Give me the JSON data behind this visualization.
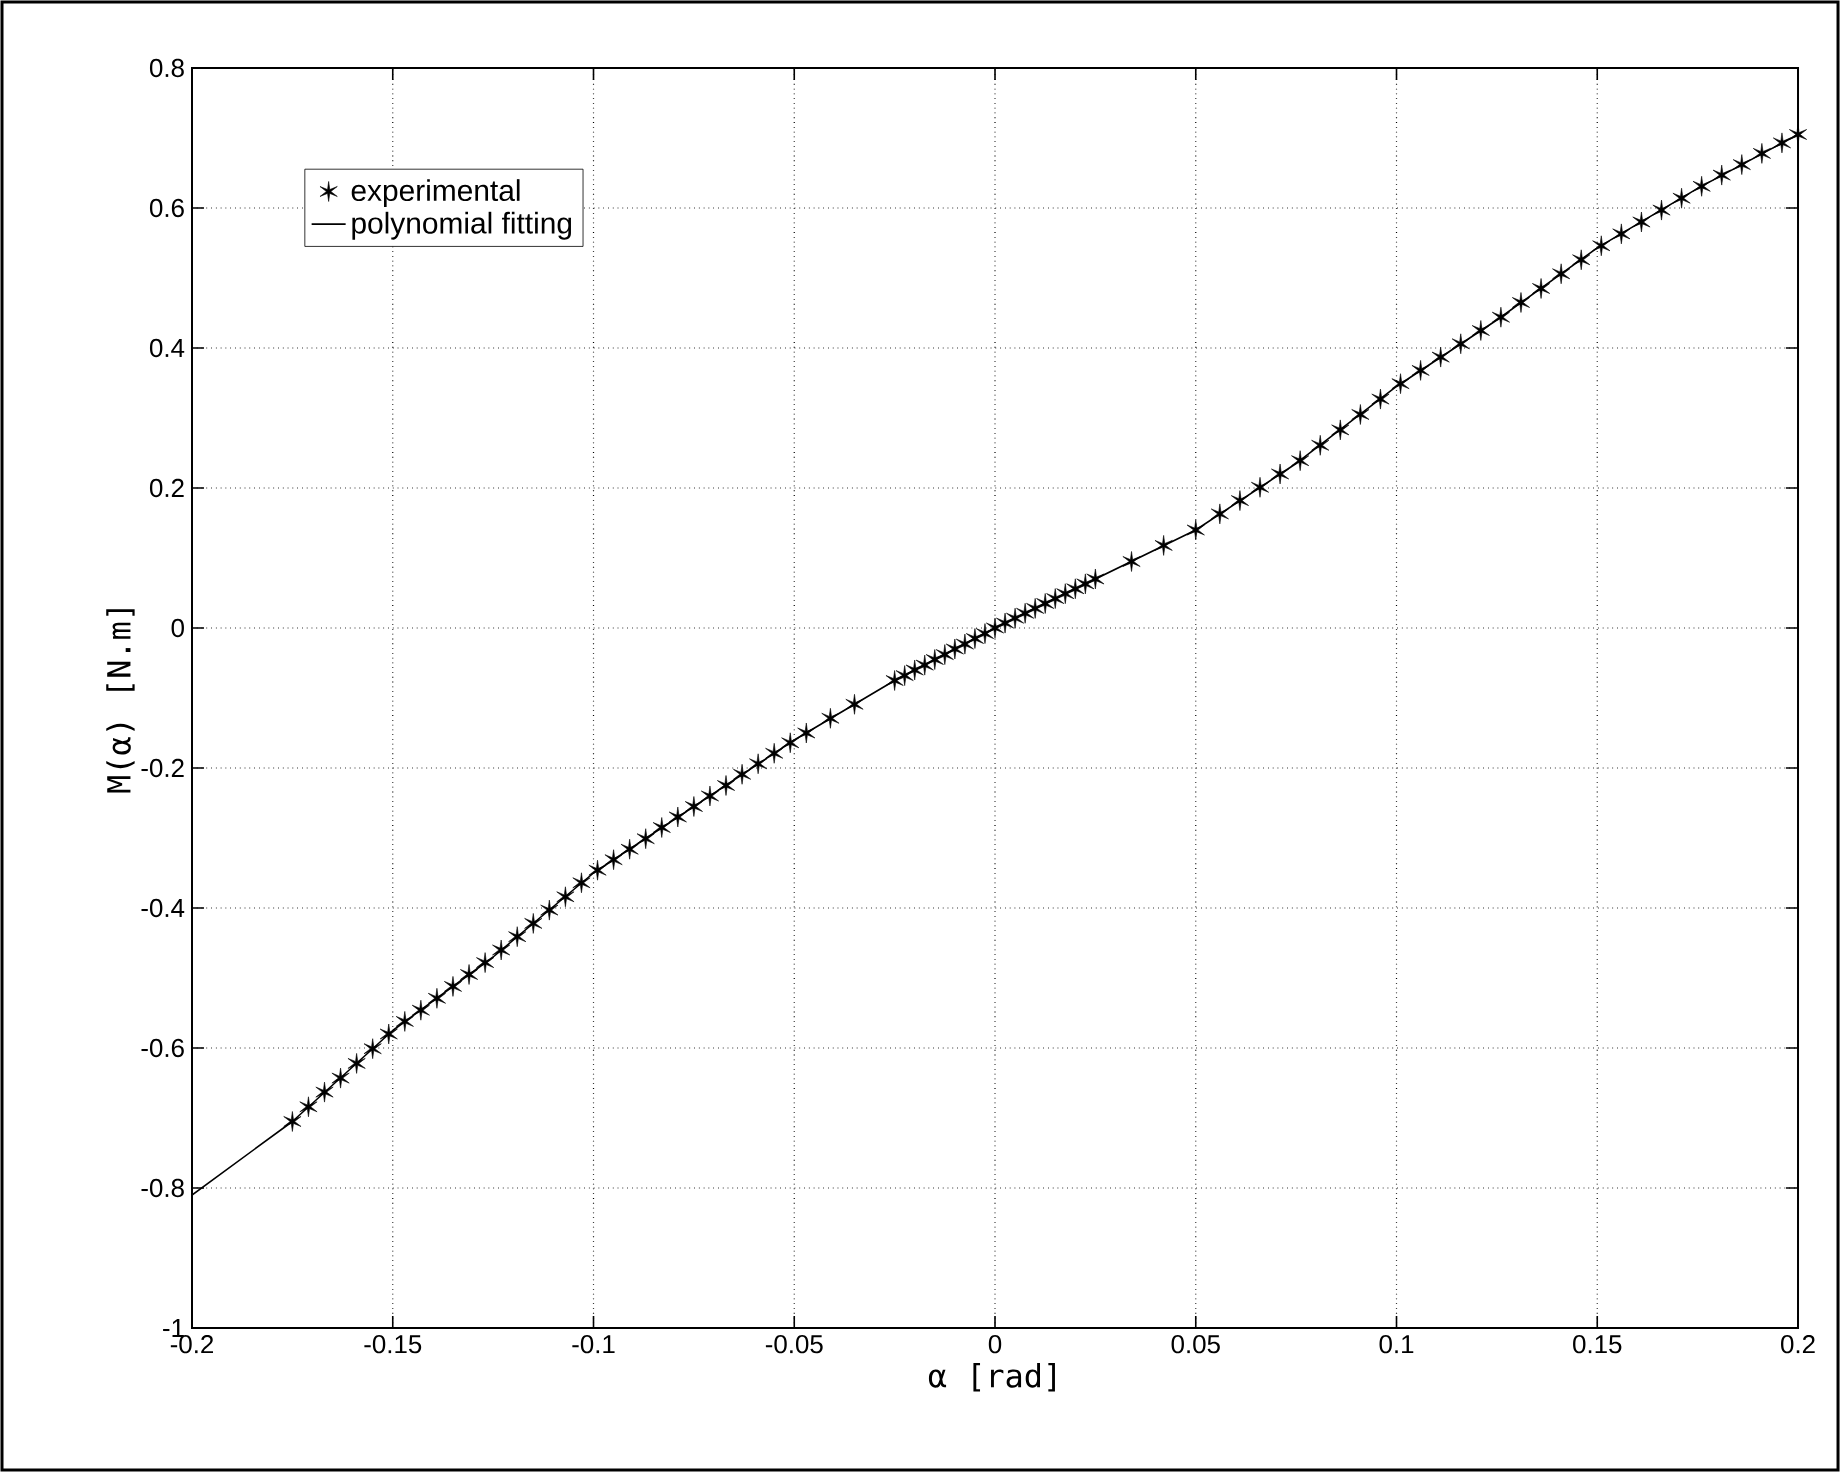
{
  "chart_data": {
    "type": "scatter",
    "xlabel": "α  [rad]",
    "ylabel": "M(α)  [N.m]",
    "xlim": [
      -0.2,
      0.2
    ],
    "ylim": [
      -1,
      0.8
    ],
    "xticks": [
      -0.2,
      -0.15,
      -0.1,
      -0.05,
      0,
      0.05,
      0.1,
      0.15,
      0.2
    ],
    "yticks": [
      -1,
      -0.8,
      -0.6,
      -0.4,
      -0.2,
      0,
      0.2,
      0.4,
      0.6,
      0.8
    ],
    "grid": true,
    "legend": "top left",
    "series": [
      {
        "name": "experimental",
        "marker": "cross",
        "color": "#000000",
        "x": [
          -0.175,
          -0.171,
          -0.167,
          -0.163,
          -0.159,
          -0.155,
          -0.151,
          -0.147,
          -0.143,
          -0.139,
          -0.135,
          -0.131,
          -0.127,
          -0.123,
          -0.119,
          -0.115,
          -0.111,
          -0.107,
          -0.103,
          -0.099,
          -0.095,
          -0.091,
          -0.087,
          -0.083,
          -0.079,
          -0.075,
          -0.071,
          -0.067,
          -0.063,
          -0.059,
          -0.055,
          -0.051,
          -0.047,
          -0.041,
          -0.035,
          -0.025,
          -0.0225,
          -0.02,
          -0.0175,
          -0.015,
          -0.0125,
          -0.01,
          -0.0075,
          -0.005,
          -0.0025,
          0,
          0.0025,
          0.005,
          0.0075,
          0.01,
          0.0125,
          0.015,
          0.0175,
          0.02,
          0.0225,
          0.025,
          0.034,
          0.042,
          0.05,
          0.056,
          0.061,
          0.066,
          0.071,
          0.076,
          0.081,
          0.086,
          0.091,
          0.096,
          0.101,
          0.106,
          0.111,
          0.116,
          0.121,
          0.126,
          0.131,
          0.136,
          0.141,
          0.146,
          0.151,
          0.156,
          0.161,
          0.166,
          0.171,
          0.176,
          0.181,
          0.186,
          0.191,
          0.196,
          0.2
        ],
        "values": [
          -0.705,
          -0.684,
          -0.663,
          -0.643,
          -0.622,
          -0.601,
          -0.58,
          -0.562,
          -0.546,
          -0.529,
          -0.512,
          -0.495,
          -0.478,
          -0.46,
          -0.441,
          -0.422,
          -0.403,
          -0.384,
          -0.364,
          -0.346,
          -0.331,
          -0.316,
          -0.301,
          -0.285,
          -0.27,
          -0.255,
          -0.24,
          -0.225,
          -0.209,
          -0.194,
          -0.179,
          -0.164,
          -0.15,
          -0.129,
          -0.109,
          -0.075,
          -0.068,
          -0.06,
          -0.053,
          -0.045,
          -0.038,
          -0.03,
          -0.023,
          -0.015,
          -0.008,
          0,
          0.007,
          0.014,
          0.021,
          0.028,
          0.035,
          0.042,
          0.049,
          0.056,
          0.063,
          0.07,
          0.095,
          0.118,
          0.14,
          0.163,
          0.182,
          0.201,
          0.22,
          0.239,
          0.261,
          0.283,
          0.305,
          0.327,
          0.349,
          0.368,
          0.387,
          0.406,
          0.425,
          0.444,
          0.465,
          0.485,
          0.506,
          0.526,
          0.546,
          0.563,
          0.58,
          0.597,
          0.614,
          0.631,
          0.647,
          0.662,
          0.678,
          0.693,
          0.705
        ]
      },
      {
        "name": "polynomial fitting",
        "type": "line",
        "marker": "none",
        "line_style": "solid",
        "color": "#000000",
        "x": [
          -0.2,
          -0.175,
          -0.15,
          -0.125,
          -0.1,
          -0.075,
          -0.05,
          -0.025,
          0,
          0.025,
          0.05,
          0.075,
          0.1,
          0.125,
          0.15,
          0.175,
          0.2
        ],
        "values": [
          -0.81,
          -0.705,
          -0.575,
          -0.47,
          -0.35,
          -0.255,
          -0.16,
          -0.075,
          0,
          0.07,
          0.14,
          0.235,
          0.345,
          0.44,
          0.543,
          0.628,
          0.705
        ]
      }
    ]
  }
}
